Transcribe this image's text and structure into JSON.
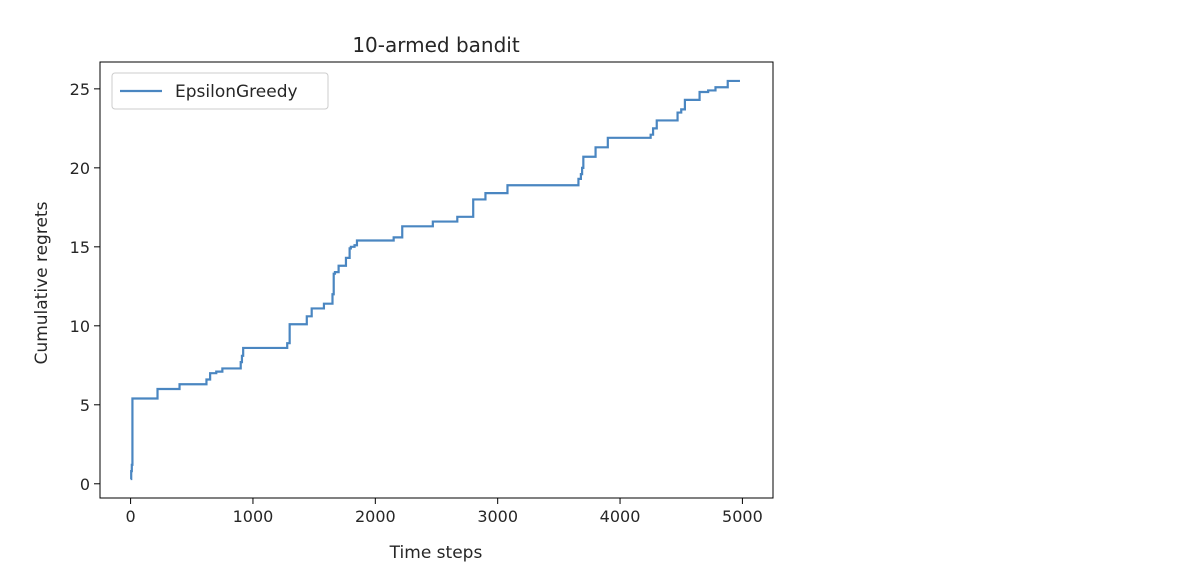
{
  "chart_data": {
    "type": "line",
    "title": "10-armed bandit",
    "xlabel": "Time steps",
    "ylabel": "Cumulative regrets",
    "xlim": [
      -250,
      5250
    ],
    "ylim": [
      -0.9,
      26.7
    ],
    "xticks": [
      0,
      1000,
      2000,
      3000,
      4000,
      5000
    ],
    "yticks": [
      0,
      5,
      10,
      15,
      20,
      25
    ],
    "grid": false,
    "legend_position": "top-left",
    "step": true,
    "series": [
      {
        "name": "EpsilonGreedy",
        "color": "#4a86c1",
        "x": [
          0,
          5,
          10,
          15,
          20,
          200,
          220,
          400,
          620,
          650,
          700,
          750,
          900,
          910,
          920,
          1120,
          1280,
          1300,
          1420,
          1440,
          1480,
          1580,
          1650,
          1660,
          1670,
          1700,
          1760,
          1790,
          1800,
          1830,
          1850,
          2000,
          2150,
          2200,
          2220,
          2470,
          2670,
          2780,
          2800,
          2900,
          3080,
          3600,
          3660,
          3680,
          3690,
          3700,
          3800,
          3900,
          4150,
          4250,
          4270,
          4300,
          4420,
          4470,
          4500,
          4530,
          4650,
          4720,
          4780,
          4880,
          4980
        ],
        "values": [
          0.3,
          0.8,
          1.2,
          5.4,
          5.4,
          5.4,
          6.0,
          6.3,
          6.6,
          7.0,
          7.1,
          7.3,
          7.7,
          8.1,
          8.6,
          8.6,
          8.9,
          10.1,
          10.1,
          10.6,
          11.1,
          11.4,
          12.0,
          13.3,
          13.4,
          13.8,
          14.3,
          14.9,
          15.0,
          15.1,
          15.4,
          15.4,
          15.6,
          15.6,
          16.3,
          16.6,
          16.9,
          16.9,
          18.0,
          18.4,
          18.9,
          18.9,
          19.3,
          19.6,
          20.0,
          20.7,
          21.3,
          21.9,
          21.9,
          22.1,
          22.5,
          23.0,
          23.0,
          23.5,
          23.7,
          24.3,
          24.8,
          24.9,
          25.1,
          25.5,
          25.5
        ]
      }
    ]
  }
}
